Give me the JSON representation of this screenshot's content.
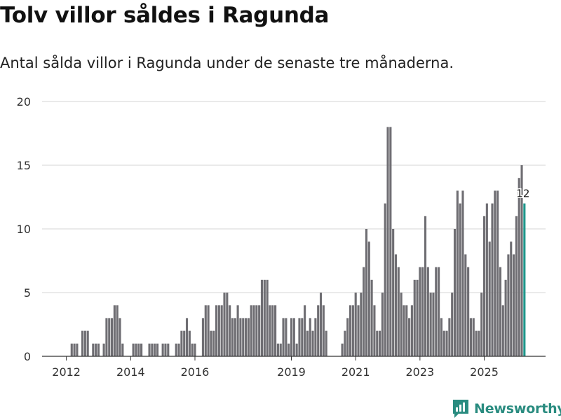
{
  "header": {
    "title": "Tolv villor såldes i Ragunda",
    "subtitle": "Antal sålda villor i Ragunda under de senaste tre månaderna."
  },
  "brand": {
    "name": "Newsworthy",
    "icon": "newsworthy-logo-icon",
    "color": "#2a8c80"
  },
  "colors": {
    "bar": "#6f6e73",
    "highlight": "#1f968b",
    "grid": "#d6d6d6",
    "axis": "#333333"
  },
  "chart_data": {
    "type": "bar",
    "title": "Tolv villor såldes i Ragunda",
    "xlabel": "",
    "ylabel": "",
    "ylim": [
      0,
      20
    ],
    "yticks": [
      0,
      5,
      10,
      15,
      20
    ],
    "xtick_labels": [
      {
        "label": "2012",
        "index": 8
      },
      {
        "label": "2014",
        "index": 32
      },
      {
        "label": "2016",
        "index": 56
      },
      {
        "label": "2019",
        "index": 92
      },
      {
        "label": "2021",
        "index": 116
      },
      {
        "label": "2023",
        "index": 140
      },
      {
        "label": "2025",
        "index": 164
      }
    ],
    "values": [
      0,
      0,
      0,
      0,
      0,
      0,
      0,
      0,
      0,
      0,
      1,
      1,
      1,
      0,
      2,
      2,
      2,
      0,
      1,
      1,
      1,
      0,
      1,
      3,
      3,
      3,
      4,
      4,
      3,
      1,
      0,
      0,
      0,
      1,
      1,
      1,
      1,
      0,
      0,
      1,
      1,
      1,
      1,
      0,
      1,
      1,
      1,
      0,
      0,
      1,
      1,
      2,
      2,
      3,
      2,
      1,
      1,
      0,
      0,
      3,
      4,
      4,
      2,
      2,
      4,
      4,
      4,
      5,
      5,
      4,
      3,
      3,
      4,
      3,
      3,
      3,
      3,
      4,
      4,
      4,
      4,
      6,
      6,
      6,
      4,
      4,
      4,
      1,
      1,
      3,
      3,
      1,
      3,
      3,
      1,
      3,
      3,
      4,
      2,
      3,
      2,
      3,
      4,
      5,
      4,
      2,
      0,
      0,
      0,
      0,
      0,
      1,
      2,
      3,
      4,
      4,
      5,
      4,
      5,
      7,
      10,
      9,
      6,
      4,
      2,
      2,
      5,
      12,
      18,
      18,
      10,
      8,
      7,
      5,
      4,
      4,
      3,
      4,
      6,
      6,
      7,
      7,
      11,
      7,
      5,
      5,
      7,
      7,
      3,
      2,
      2,
      3,
      5,
      10,
      13,
      12,
      13,
      8,
      7,
      3,
      3,
      2,
      2,
      5,
      11,
      12,
      9,
      12,
      13,
      13,
      7,
      4,
      6,
      8,
      9,
      8,
      11,
      14,
      15,
      12
    ],
    "highlight_index": 179,
    "annotation": {
      "label": "12",
      "index": 179,
      "value": 12
    }
  }
}
